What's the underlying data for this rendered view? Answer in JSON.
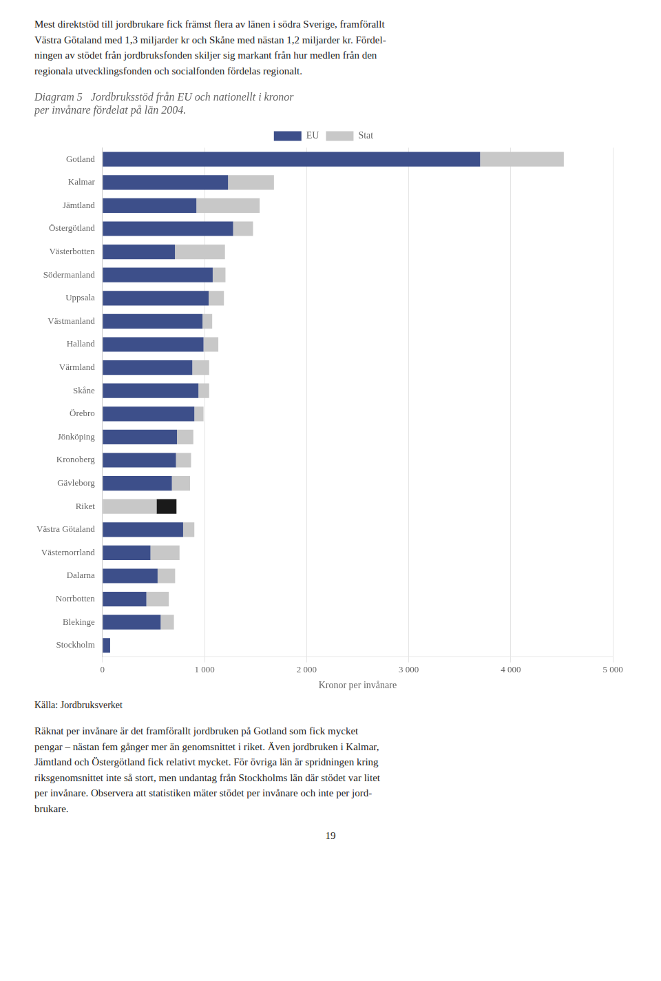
{
  "chart_data": {
    "type": "bar",
    "orientation": "horizontal",
    "stacked": true,
    "title": [
      "Diagram 5   Jordbruksstöd från EU och nationellt i kronor",
      "per invånare fördelat på län 2004."
    ],
    "annotations": [
      "Mest direktstöd till jordbrukare fick främst flera av länen i södra Sverige, framförallt\nVästra Götaland med 1,3 miljarder kr och Skåne med nästan 1,2 miljarder kr. Fördel-\nningen av stödet från jordbruksfonden skiljer sig markant från hur medlen från den\nregionala utvecklingsfonden och socialfonden fördelas regionalt.",
      "Källa: Jordbruksverket",
      "Räknat per invånare är det framförallt jordbruken på Gotland som fick mycket\npengar – nästan fem gånger mer än genomsnittet i riket. Även jordbruken i Kalmar,\nJämtland och Östergötland fick relativt mycket. För övriga län är spridningen kring\nriksgenomsnittet inte så stort, men undantag från Stockholms län där stödet var litet\nper invånare. Observera att statistiken mäter stödet per invånare och inte per jord-\nbrukare.",
      "19"
    ],
    "categories": [
      "Gotland",
      "Kalmar",
      "Jämtland",
      "Östergötland",
      "Västerbotten",
      "Södermanland",
      "Uppsala",
      "Västmanland",
      "Halland",
      "Värmland",
      "Skåne",
      "Örebro",
      "Jönköping",
      "Kronoberg",
      "Gävleborg",
      "Riket",
      "Västra Götaland",
      "Västernorrland",
      "Dalarna",
      "Norrbotten",
      "Blekinge",
      "Stockholm"
    ],
    "series": [
      {
        "name": "EU",
        "color": "#3d4f8a",
        "colors": [
          "#3d4f8a",
          "#3d4f8a",
          "#3d4f8a",
          "#3d4f8a",
          "#3d4f8a",
          "#3d4f8a",
          "#3d4f8a",
          "#3d4f8a",
          "#3d4f8a",
          "#3d4f8a",
          "#3d4f8a",
          "#3d4f8a",
          "#3d4f8a",
          "#3d4f8a",
          "#3d4f8a",
          "#c8c8c8",
          "#3d4f8a",
          "#3d4f8a",
          "#3d4f8a",
          "#3d4f8a",
          "#3d4f8a",
          "#3d4f8a"
        ],
        "values": [
          3700,
          1230,
          920,
          1280,
          710,
          1080,
          1040,
          980,
          990,
          880,
          940,
          900,
          730,
          720,
          680,
          530,
          790,
          470,
          540,
          430,
          570,
          75
        ]
      },
      {
        "name": "Stat",
        "color": "#c8c8c8",
        "colors": [
          "#c8c8c8",
          "#c8c8c8",
          "#c8c8c8",
          "#c8c8c8",
          "#c8c8c8",
          "#c8c8c8",
          "#c8c8c8",
          "#c8c8c8",
          "#c8c8c8",
          "#c8c8c8",
          "#c8c8c8",
          "#c8c8c8",
          "#c8c8c8",
          "#c8c8c8",
          "#c8c8c8",
          "#1a1a1a",
          "#c8c8c8",
          "#c8c8c8",
          "#c8c8c8",
          "#c8c8c8",
          "#c8c8c8",
          "#c8c8c8"
        ],
        "values": [
          820,
          450,
          620,
          195,
          490,
          125,
          150,
          95,
          145,
          165,
          105,
          90,
          160,
          148,
          178,
          195,
          110,
          285,
          172,
          220,
          130,
          0
        ]
      }
    ],
    "xlabel": "Kronor per invånare",
    "xlim": [
      0,
      5000
    ],
    "xticks": [
      0,
      {
        "value": 1000,
        "label": "1 000"
      },
      {
        "value": 2000,
        "label": "2 000"
      },
      {
        "value": 3000,
        "label": "3 000"
      },
      {
        "value": 4000,
        "label": "4 000"
      },
      {
        "value": 5000,
        "label": "5 000"
      }
    ],
    "grid": true,
    "legend": "top"
  }
}
